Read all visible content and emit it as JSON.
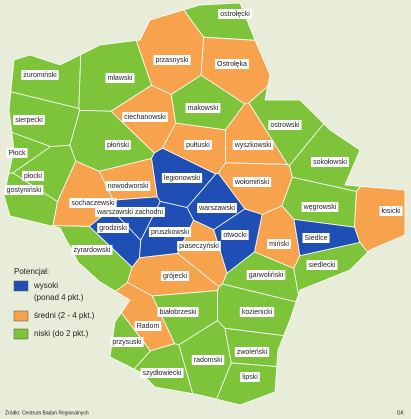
{
  "map": {
    "districts": [
      {
        "name": "ostrołęcki",
        "color": "#7dc43a"
      },
      {
        "name": "przasnyski",
        "color": "#f7a24c"
      },
      {
        "name": "Ostrołęka",
        "color": "#f7a24c"
      },
      {
        "name": "żuromiński",
        "color": "#7dc43a"
      },
      {
        "name": "mławski",
        "color": "#7dc43a"
      },
      {
        "name": "makowski",
        "color": "#7dc43a"
      },
      {
        "name": "ciechanowski",
        "color": "#f7a24c"
      },
      {
        "name": "ostrowski",
        "color": "#7dc43a"
      },
      {
        "name": "sierpecki",
        "color": "#7dc43a"
      },
      {
        "name": "płoński",
        "color": "#7dc43a"
      },
      {
        "name": "pułtuski",
        "color": "#f7a24c"
      },
      {
        "name": "wyszkowski",
        "color": "#f7a24c"
      },
      {
        "name": "Płock",
        "color": "#7dc43a"
      },
      {
        "name": "płocki",
        "color": "#7dc43a"
      },
      {
        "name": "sokołowski",
        "color": "#7dc43a"
      },
      {
        "name": "legionowski",
        "color": "#1f4fb4"
      },
      {
        "name": "nowodworski",
        "color": "#f7a24c"
      },
      {
        "name": "wołomiński",
        "color": "#f7a24c"
      },
      {
        "name": "węgrowski",
        "color": "#7dc43a"
      },
      {
        "name": "gostyniński",
        "color": "#7dc43a"
      },
      {
        "name": "sochaczewski",
        "color": "#f7a24c"
      },
      {
        "name": "warszawski zachodni",
        "color": "#1f4fb4"
      },
      {
        "name": "warszawski",
        "color": "#1f4fb4"
      },
      {
        "name": "miński",
        "color": "#f7a24c"
      },
      {
        "name": "Siedlce",
        "color": "#1f4fb4"
      },
      {
        "name": "łosicki",
        "color": "#f7a24c"
      },
      {
        "name": "siedlecki",
        "color": "#7dc43a"
      },
      {
        "name": "grodziski",
        "color": "#1f4fb4"
      },
      {
        "name": "pruszkowski",
        "color": "#1f4fb4"
      },
      {
        "name": "otwocki",
        "color": "#1f4fb4"
      },
      {
        "name": "żyrardowski",
        "color": "#7dc43a"
      },
      {
        "name": "piaseczyński",
        "color": "#f7a24c"
      },
      {
        "name": "grójecki",
        "color": "#f7a24c"
      },
      {
        "name": "garwoliński",
        "color": "#7dc43a"
      },
      {
        "name": "białobrzeski",
        "color": "#7dc43a"
      },
      {
        "name": "kozienicki",
        "color": "#7dc43a"
      },
      {
        "name": "Radom",
        "color": "#f7a24c"
      },
      {
        "name": "przysuski",
        "color": "#7dc43a"
      },
      {
        "name": "radomski",
        "color": "#7dc43a"
      },
      {
        "name": "zwoleński",
        "color": "#7dc43a"
      },
      {
        "name": "szydłowiecki",
        "color": "#7dc43a"
      },
      {
        "name": "lipski",
        "color": "#7dc43a"
      }
    ],
    "legend": {
      "title": "Potencjał:",
      "items": [
        {
          "color": "#1f4fb4",
          "lines": [
            "wysoki",
            "(ponad 4 pkt.)"
          ]
        },
        {
          "color": "#f7a24c",
          "lines": [
            "średni (2 - 4 pkt.)"
          ]
        },
        {
          "color": "#7dc43a",
          "lines": [
            "niski (do 2 pkt.)"
          ]
        }
      ]
    },
    "source": "Źródło: Centrum Badań Regionalnych",
    "author": "GK"
  }
}
